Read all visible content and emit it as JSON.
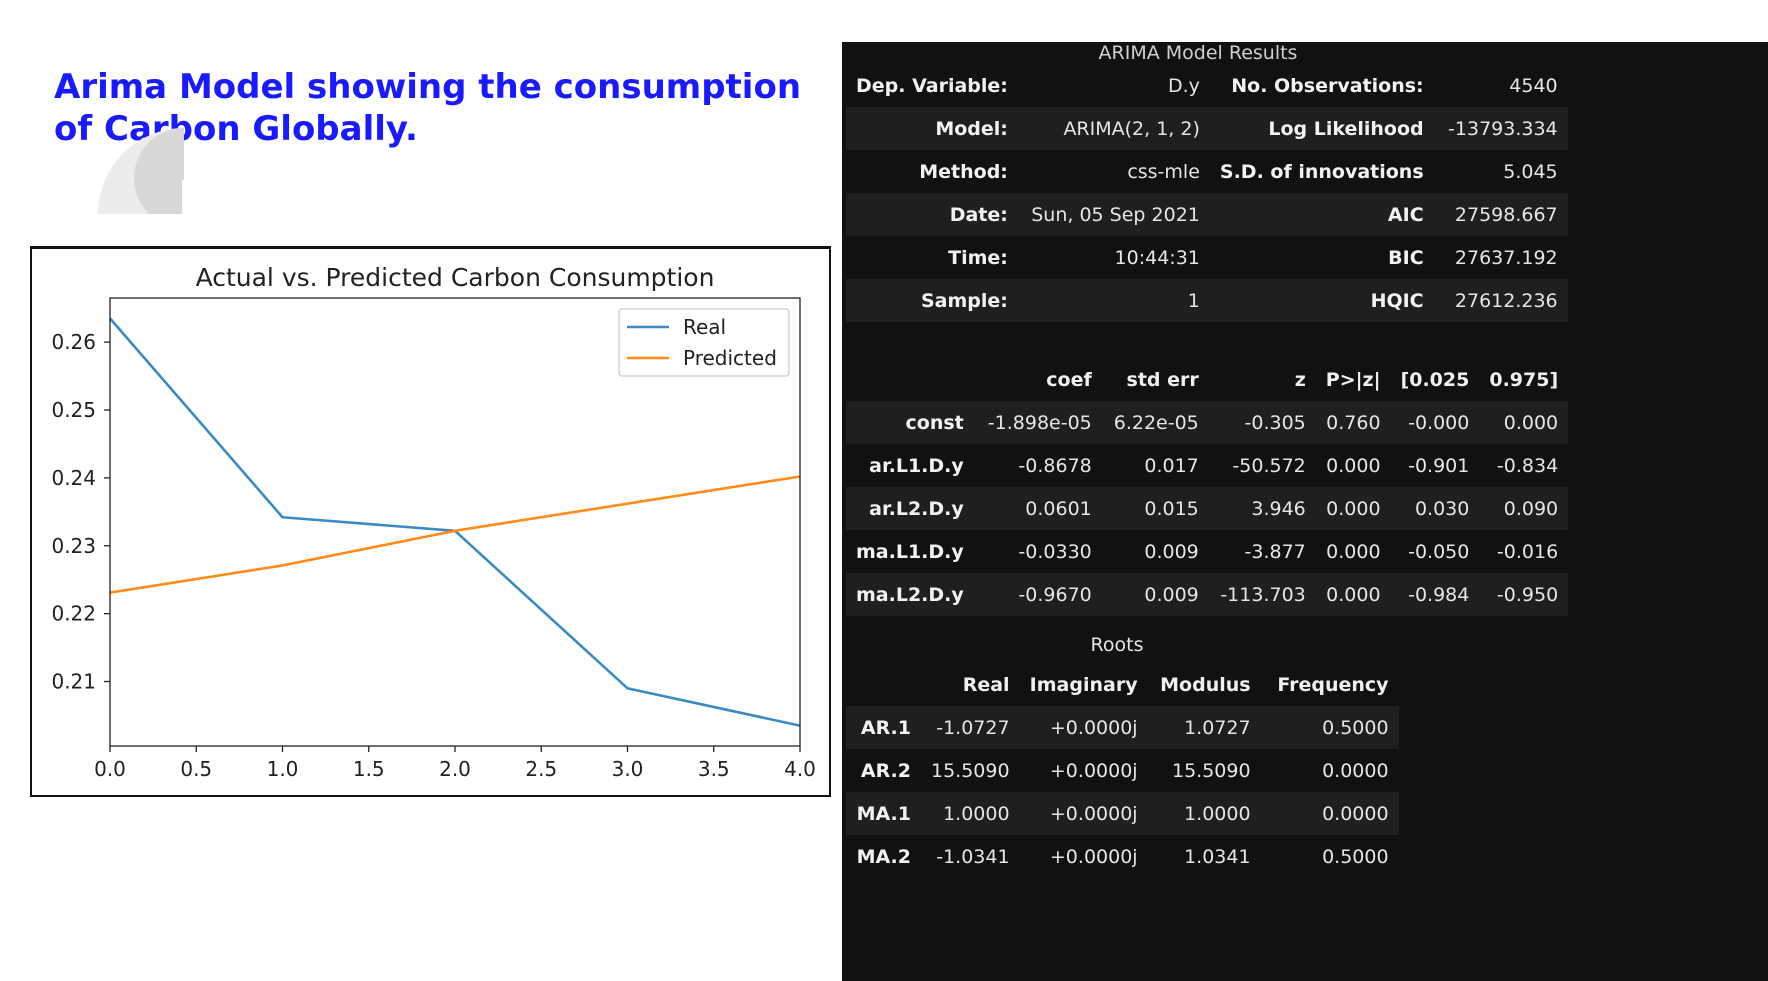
{
  "slide": {
    "title": "Arima Model showing the consumption of Carbon Globally."
  },
  "chart_data": {
    "type": "line",
    "title": "Actual vs. Predicted Carbon Consumption",
    "x": [
      0,
      1,
      2,
      3,
      4
    ],
    "series": [
      {
        "name": "Real",
        "values": [
          0.2635,
          0.2342,
          0.2322,
          0.209,
          0.2035
        ],
        "color": "#3b8bc2"
      },
      {
        "name": "Predicted",
        "values": [
          0.2231,
          0.2271,
          0.2322,
          0.2362,
          0.2402
        ],
        "color": "#ff8c1a"
      }
    ],
    "xlim": [
      0,
      4
    ],
    "ylim": [
      0.2005,
      0.2665
    ],
    "xticks": [
      "0.0",
      "0.5",
      "1.0",
      "1.5",
      "2.0",
      "2.5",
      "3.0",
      "3.5",
      "4.0"
    ],
    "yticks": [
      "0.21",
      "0.22",
      "0.23",
      "0.24",
      "0.25",
      "0.26"
    ],
    "legend_position": "top-right",
    "grid": false
  },
  "arima": {
    "title": "ARIMA Model Results",
    "summary_rows": [
      [
        "Dep. Variable:",
        "D.y",
        "No. Observations:",
        "4540"
      ],
      [
        "Model:",
        "ARIMA(2, 1, 2)",
        "Log Likelihood",
        "-13793.334"
      ],
      [
        "Method:",
        "css-mle",
        "S.D. of innovations",
        "5.045"
      ],
      [
        "Date:",
        "Sun, 05 Sep 2021",
        "AIC",
        "27598.667"
      ],
      [
        "Time:",
        "10:44:31",
        "BIC",
        "27637.192"
      ],
      [
        "Sample:",
        "1",
        "HQIC",
        "27612.236"
      ]
    ],
    "coef_headers": [
      "",
      "coef",
      "std err",
      "z",
      "P>|z|",
      "[0.025",
      "0.975]"
    ],
    "coef_rows": [
      [
        "const",
        "-1.898e-05",
        "6.22e-05",
        "-0.305",
        "0.760",
        "-0.000",
        "0.000"
      ],
      [
        "ar.L1.D.y",
        "-0.8678",
        "0.017",
        "-50.572",
        "0.000",
        "-0.901",
        "-0.834"
      ],
      [
        "ar.L2.D.y",
        "0.0601",
        "0.015",
        "3.946",
        "0.000",
        "0.030",
        "0.090"
      ],
      [
        "ma.L1.D.y",
        "-0.0330",
        "0.009",
        "-3.877",
        "0.000",
        "-0.050",
        "-0.016"
      ],
      [
        "ma.L2.D.y",
        "-0.9670",
        "0.009",
        "-113.703",
        "0.000",
        "-0.984",
        "-0.950"
      ]
    ],
    "roots_title": "Roots",
    "roots_headers": [
      "",
      "Real",
      "Imaginary",
      "Modulus",
      "Frequency"
    ],
    "roots_rows": [
      [
        "AR.1",
        "-1.0727",
        "+0.0000j",
        "1.0727",
        "0.5000"
      ],
      [
        "AR.2",
        "15.5090",
        "+0.0000j",
        "15.5090",
        "0.0000"
      ],
      [
        "MA.1",
        "1.0000",
        "+0.0000j",
        "1.0000",
        "0.0000"
      ],
      [
        "MA.2",
        "-1.0341",
        "+0.0000j",
        "1.0341",
        "0.5000"
      ]
    ]
  }
}
